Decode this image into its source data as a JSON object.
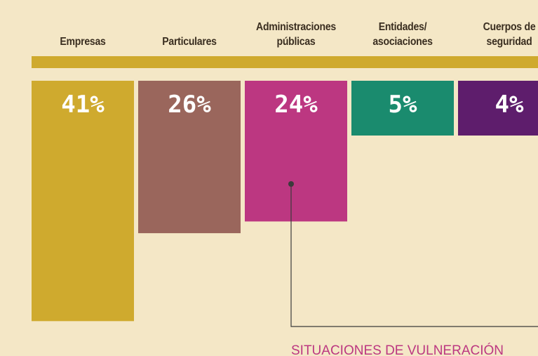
{
  "chart_data": {
    "type": "bar",
    "categories": [
      "Empresas",
      "Particulares",
      "Administraciones públicas",
      "Entidades/ asociaciones",
      "Cuerpos de seguridad"
    ],
    "values": [
      41,
      26,
      24,
      5,
      4
    ],
    "value_labels": [
      "41%",
      "26%",
      "24%",
      "5%",
      "4%"
    ],
    "colors": [
      "#cfaa2e",
      "#9a665c",
      "#bc3781",
      "#1a8b6e",
      "#5e1d6c"
    ],
    "annotation": "SITUACIONES DE VULNERACIÓN"
  }
}
